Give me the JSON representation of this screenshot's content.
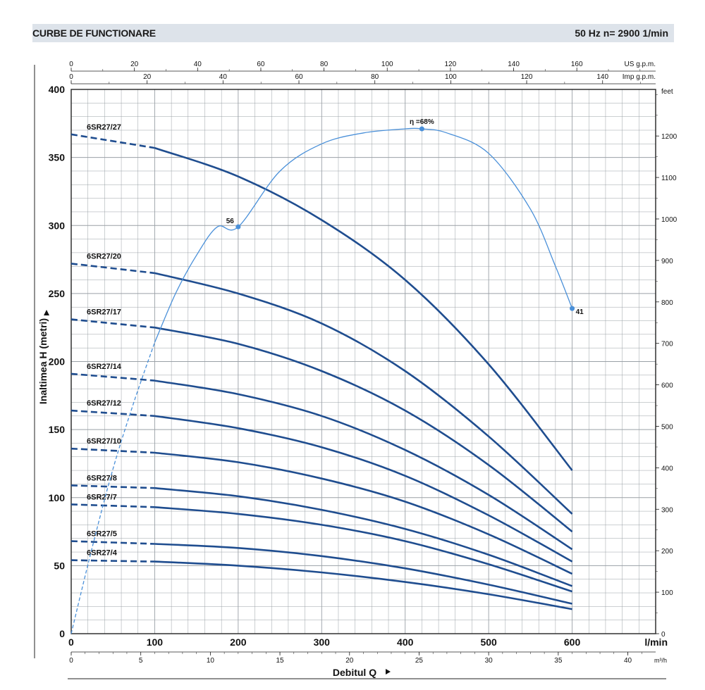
{
  "header": {
    "title": "CURBE DE FUNCTIONARE",
    "spec": "50 Hz    n= 2900  1/min"
  },
  "chart_data": {
    "type": "line",
    "ylabel": "Inaltimea H (metri)",
    "xlabel": "Debitul Q",
    "x_unit": "l/min",
    "x2_unit": "m³/h",
    "top1_unit": "US g.p.m.",
    "top2_unit": "Imp g.p.m.",
    "right_unit": "feet",
    "xlim": [
      0,
      700
    ],
    "ylim": [
      0,
      400
    ],
    "x_ticks": [
      0,
      100,
      200,
      300,
      400,
      500,
      600
    ],
    "y_ticks": [
      0,
      50,
      100,
      150,
      200,
      250,
      300,
      350,
      400
    ],
    "m3h_ticks": [
      0,
      5,
      10,
      15,
      20,
      25,
      30,
      35,
      40
    ],
    "usgpm_ticks": [
      0,
      20,
      40,
      60,
      80,
      100,
      120,
      140,
      160
    ],
    "impgpm_ticks": [
      0,
      20,
      40,
      60,
      80,
      100,
      120,
      140
    ],
    "feet_ticks": [
      0,
      100,
      200,
      300,
      400,
      500,
      600,
      700,
      800,
      900,
      1000,
      1100,
      1200
    ],
    "series": [
      {
        "name": "6SR27/27",
        "x": [
          0,
          100,
          200,
          300,
          400,
          500,
          600
        ],
        "y": [
          367,
          357,
          336,
          304,
          260,
          198,
          120
        ]
      },
      {
        "name": "6SR27/20",
        "x": [
          0,
          100,
          200,
          300,
          400,
          500,
          600
        ],
        "y": [
          272,
          265,
          250,
          228,
          193,
          145,
          88
        ]
      },
      {
        "name": "6SR27/17",
        "x": [
          0,
          100,
          200,
          300,
          400,
          500,
          600
        ],
        "y": [
          231,
          225,
          213,
          193,
          164,
          124,
          75
        ]
      },
      {
        "name": "6SR27/14",
        "x": [
          0,
          100,
          200,
          300,
          400,
          500,
          600
        ],
        "y": [
          191,
          186,
          176,
          160,
          135,
          102,
          62
        ]
      },
      {
        "name": "6SR27/12",
        "x": [
          0,
          100,
          200,
          300,
          400,
          500,
          600
        ],
        "y": [
          164,
          160,
          151,
          137,
          116,
          87,
          53
        ]
      },
      {
        "name": "6SR27/10",
        "x": [
          0,
          100,
          200,
          300,
          400,
          500,
          600
        ],
        "y": [
          136,
          133,
          126,
          114,
          97,
          73,
          44
        ]
      },
      {
        "name": "6SR27/8",
        "x": [
          0,
          100,
          200,
          300,
          400,
          500,
          600
        ],
        "y": [
          109,
          107,
          101,
          91,
          77,
          58,
          35
        ]
      },
      {
        "name": "6SR27/7",
        "x": [
          0,
          100,
          200,
          300,
          400,
          500,
          600
        ],
        "y": [
          95,
          93,
          88,
          80,
          68,
          51,
          31
        ]
      },
      {
        "name": "6SR27/5",
        "x": [
          0,
          100,
          200,
          300,
          400,
          500,
          600
        ],
        "y": [
          68,
          66,
          63,
          57,
          48,
          36,
          22
        ]
      },
      {
        "name": "6SR27/4",
        "x": [
          0,
          100,
          200,
          300,
          400,
          500,
          600
        ],
        "y": [
          54,
          53,
          50,
          45,
          38,
          29,
          18
        ]
      }
    ],
    "solid_from_x": 100,
    "efficiency": {
      "label": "η =68%",
      "points": [
        {
          "x": 200,
          "y": 299,
          "label": "56"
        },
        {
          "x": 420,
          "y": 371,
          "label": ""
        },
        {
          "x": 600,
          "y": 239,
          "label": "41"
        }
      ],
      "x": [
        0,
        25,
        50,
        75,
        100,
        125,
        150,
        175,
        200,
        250,
        300,
        350,
        400,
        420,
        450,
        500,
        550,
        580,
        600
      ],
      "y": [
        0,
        63,
        121,
        170,
        214,
        250,
        278,
        299,
        299,
        340,
        360,
        368,
        371,
        371,
        368,
        353,
        312,
        270,
        239
      ],
      "dashed_until_x": 100
    }
  }
}
